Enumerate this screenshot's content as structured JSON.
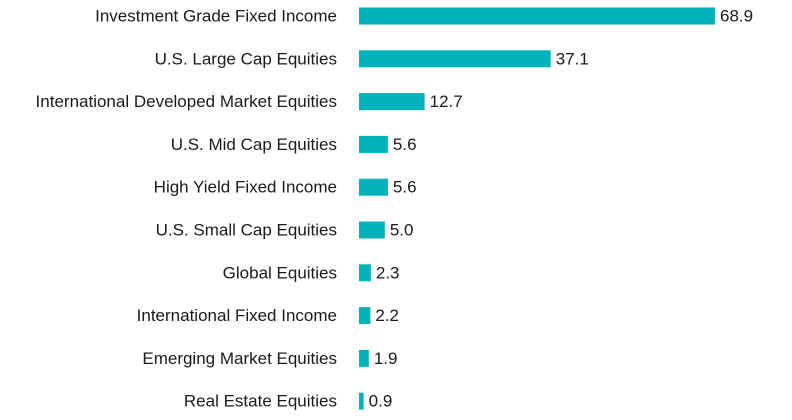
{
  "chart_data": {
    "type": "bar",
    "orientation": "horizontal",
    "categories": [
      "Investment Grade Fixed Income",
      "U.S. Large Cap Equities",
      "International Developed Market Equities",
      "U.S. Mid Cap Equities",
      "High Yield Fixed Income",
      "U.S. Small Cap Equities",
      "Global Equities",
      "International Fixed Income",
      "Emerging Market Equities",
      "Real Estate Equities"
    ],
    "values": [
      68.9,
      37.1,
      12.7,
      5.6,
      5.6,
      5.0,
      2.3,
      2.2,
      1.9,
      0.9
    ],
    "value_labels": [
      "68.9",
      "37.1",
      "12.7",
      "5.6",
      "5.6",
      "5.0",
      "2.3",
      "2.2",
      "1.9",
      "0.9"
    ],
    "xlim": [
      0,
      68.9
    ],
    "grid": false,
    "legend": "none",
    "bar_color": "#00b2b9"
  }
}
